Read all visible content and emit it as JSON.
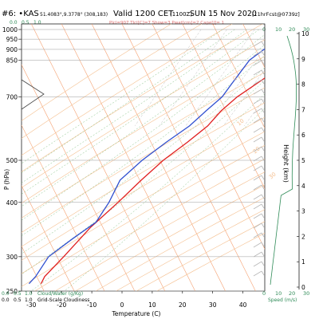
{
  "header": {
    "station": "#6: •KAS",
    "coords": "51.4083°,9.3778° (308,183)",
    "valid": "Valid 1200 CET",
    "valid_sub": "(1100Z)",
    "date": "SUN 15 Nov 2020",
    "fcst": "[11hrFcst@0739z]",
    "params": "Plcl=907 Tlcl[C]=7 Show=3 Pwat[cm]=2 Cape[J]= 1",
    "cloud_ticks": [
      "0.0",
      "0.5",
      "1.0"
    ],
    "speed_ticks": [
      "0",
      "10",
      "20",
      "30"
    ]
  },
  "colors": {
    "temperature": "#e02020",
    "dewpoint": "#3050d0",
    "isotherms": "#f5a070",
    "dry_adiabats": "#f5c090",
    "moist_adiabats": "#7fbf7f",
    "mixing_ratio": "#bfbfbf",
    "cloud_grid": "#2e8b57",
    "speed": "#2e8b57"
  },
  "chart_data": {
    "type": "line",
    "title": "Valid 1200 CET (1100Z) SUN 15 Nov 2020",
    "xlabel": "Temperature (C)",
    "ylabel": "P (hPa)",
    "right_ylabel": "Height (km)",
    "log_y": true,
    "x_ticks": [
      -30,
      -20,
      -10,
      0,
      10,
      20,
      30,
      40
    ],
    "y_ticks": [
      250,
      300,
      400,
      500,
      700,
      850,
      900,
      950,
      1000
    ],
    "y_range": [
      1030,
      250
    ],
    "height_ticks": [
      0,
      1,
      2,
      3,
      4,
      5,
      6,
      7,
      8,
      9,
      10
    ],
    "isopleth_labels": [
      {
        "value": "0",
        "color": "#f5c090"
      },
      {
        "value": "10",
        "color": "#f5c090"
      },
      {
        "value": "20",
        "color": "#f5c090"
      },
      {
        "value": "30",
        "color": "#f5c090"
      }
    ],
    "series": [
      {
        "key": "temperature",
        "points": [
          {
            "p": 985,
            "t": 15
          },
          {
            "p": 970,
            "t": 14
          },
          {
            "p": 950,
            "t": 14
          },
          {
            "p": 925,
            "t": 15
          },
          {
            "p": 900,
            "t": 15
          },
          {
            "p": 850,
            "t": 16
          },
          {
            "p": 800,
            "t": 14
          },
          {
            "p": 760,
            "t": 11
          },
          {
            "p": 700,
            "t": 6
          },
          {
            "p": 650,
            "t": 3
          },
          {
            "p": 600,
            "t": 1
          },
          {
            "p": 550,
            "t": -3
          },
          {
            "p": 500,
            "t": -8
          },
          {
            "p": 450,
            "t": -12
          },
          {
            "p": 400,
            "t": -16
          },
          {
            "p": 350,
            "t": -21
          },
          {
            "p": 300,
            "t": -25
          },
          {
            "p": 270,
            "t": -28
          },
          {
            "p": 260,
            "t": -28
          }
        ]
      },
      {
        "key": "dewpoint",
        "points": [
          {
            "p": 985,
            "t": 10
          },
          {
            "p": 950,
            "t": 10
          },
          {
            "p": 925,
            "t": 9
          },
          {
            "p": 900,
            "t": 7
          },
          {
            "p": 850,
            "t": 4
          },
          {
            "p": 800,
            "t": 3
          },
          {
            "p": 750,
            "t": 2
          },
          {
            "p": 700,
            "t": 1
          },
          {
            "p": 650,
            "t": -2
          },
          {
            "p": 600,
            "t": -5
          },
          {
            "p": 550,
            "t": -10
          },
          {
            "p": 500,
            "t": -15
          },
          {
            "p": 450,
            "t": -19
          },
          {
            "p": 400,
            "t": -19
          },
          {
            "p": 360,
            "t": -20
          },
          {
            "p": 330,
            "t": -25
          },
          {
            "p": 300,
            "t": -30
          },
          {
            "p": 270,
            "t": -31
          },
          {
            "p": 260,
            "t": -32
          }
        ]
      }
    ],
    "surface_markers": [
      {
        "key": "temperature",
        "p": 985,
        "t": 15
      },
      {
        "key": "dewpoint",
        "p": 985,
        "t": 10
      }
    ]
  },
  "legend": {
    "cloud_water": "Cloud/Water (g/Kg)",
    "grid_cloud": "Grid-Scale Cloudiness",
    "cloud_ticks": [
      "0.0",
      "0.5",
      "1.0"
    ],
    "speed_ticks": [
      "0",
      "10",
      "20",
      "30"
    ],
    "speed_label": "Speed (m/s)"
  }
}
